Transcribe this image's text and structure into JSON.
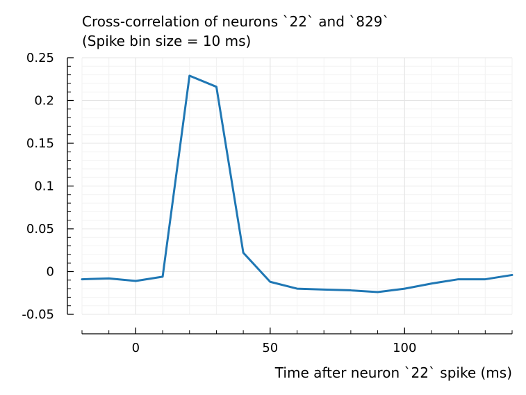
{
  "chart_data": {
    "type": "line",
    "title_lines": [
      "Cross-correlation of neurons `22` and `829`",
      "(Spike bin size = 10 ms)"
    ],
    "xlabel": "Time after neuron `22` spike (ms)",
    "ylabel": "",
    "xlim": [
      -20,
      140
    ],
    "ylim": [
      -0.05,
      0.25
    ],
    "x_ticks": [
      0,
      50,
      100
    ],
    "x_tick_labels": [
      "0",
      "50",
      "100"
    ],
    "y_ticks": [
      -0.05,
      0,
      0.05,
      0.1,
      0.15,
      0.2,
      0.25
    ],
    "y_tick_labels": [
      "-0.05",
      "0",
      "0.05",
      "0.1",
      "0.15",
      "0.2",
      "0.25"
    ],
    "grid": true,
    "series": [
      {
        "color": "#1f77b4",
        "x": [
          -20,
          -10,
          0,
          10,
          20,
          30,
          40,
          50,
          60,
          70,
          80,
          90,
          100,
          110,
          120,
          130,
          140
        ],
        "y": [
          -0.009,
          -0.008,
          -0.011,
          -0.006,
          0.229,
          0.216,
          0.022,
          -0.012,
          -0.02,
          -0.021,
          -0.022,
          -0.024,
          -0.02,
          -0.014,
          -0.009,
          -0.009,
          -0.004
        ]
      }
    ]
  }
}
